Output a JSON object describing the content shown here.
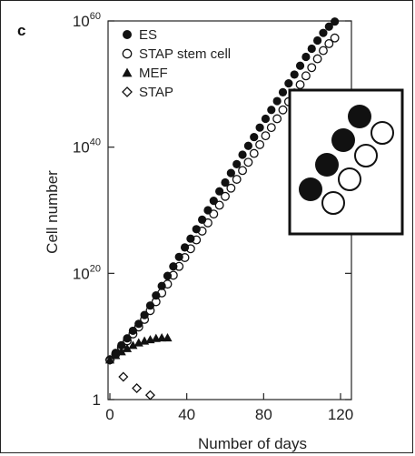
{
  "panel_label": "c",
  "chart_data": {
    "type": "scatter",
    "xlabel": "Number of days",
    "ylabel": "Cell number",
    "xlim": [
      0,
      120
    ],
    "ylim_log10": [
      0,
      60
    ],
    "y_scale": "log",
    "x_ticks": [
      0,
      40,
      80,
      120
    ],
    "y_ticks": [
      {
        "base": "1",
        "exp": ""
      },
      {
        "base": "10",
        "exp": "20"
      },
      {
        "base": "10",
        "exp": "40"
      },
      {
        "base": "10",
        "exp": "60"
      }
    ],
    "legend_position": "top-left",
    "series": [
      {
        "name": "ES",
        "marker": "filled-circle",
        "x": [
          0,
          3,
          6,
          9,
          12,
          15,
          18,
          21,
          24,
          27,
          30,
          33,
          36,
          39,
          42,
          45,
          48,
          51,
          54,
          57,
          60,
          63,
          66,
          69,
          72,
          75,
          78,
          81,
          84,
          87,
          90,
          93,
          96,
          99,
          102,
          105,
          108,
          111,
          114,
          117
        ],
        "y_log10": [
          6.3,
          7.4,
          8.6,
          9.7,
          10.9,
          12.0,
          13.4,
          14.9,
          16.5,
          18.0,
          19.6,
          21.1,
          22.6,
          24.1,
          25.5,
          27.0,
          28.5,
          30.0,
          31.5,
          33.0,
          34.4,
          35.9,
          37.3,
          38.8,
          40.2,
          41.6,
          43.1,
          44.5,
          45.9,
          47.3,
          48.7,
          50.1,
          51.5,
          52.9,
          54.3,
          55.6,
          56.9,
          58.1,
          59.1,
          59.9
        ]
      },
      {
        "name": "STAP stem cell",
        "marker": "open-circle",
        "x": [
          0,
          3,
          6,
          9,
          12,
          15,
          18,
          21,
          24,
          27,
          30,
          33,
          36,
          39,
          42,
          45,
          48,
          51,
          54,
          57,
          60,
          63,
          66,
          69,
          72,
          75,
          78,
          81,
          84,
          87,
          90,
          93,
          96,
          99,
          102,
          105,
          108,
          111,
          114,
          117
        ],
        "y_log10": [
          6.3,
          7.2,
          8.3,
          9.3,
          10.4,
          11.5,
          12.7,
          14.1,
          15.5,
          16.9,
          18.3,
          19.7,
          21.1,
          22.5,
          23.9,
          25.3,
          26.7,
          28.0,
          29.4,
          30.8,
          32.2,
          33.5,
          34.9,
          36.3,
          37.6,
          39.0,
          40.4,
          41.8,
          43.1,
          44.5,
          45.9,
          47.2,
          48.6,
          49.9,
          51.3,
          52.6,
          54.0,
          55.3,
          56.4,
          57.3
        ]
      },
      {
        "name": "MEF",
        "marker": "filled-triangle",
        "x": [
          0,
          3,
          6,
          9,
          12,
          15,
          18,
          21,
          24,
          27,
          30
        ],
        "y_log10": [
          6.3,
          7.0,
          7.6,
          8.1,
          8.6,
          9.0,
          9.3,
          9.5,
          9.7,
          9.8,
          9.8
        ]
      },
      {
        "name": "STAP",
        "marker": "open-diamond",
        "x": [
          0,
          7,
          14,
          21
        ],
        "y_log10": [
          6.3,
          3.6,
          1.8,
          0.7
        ]
      }
    ]
  }
}
